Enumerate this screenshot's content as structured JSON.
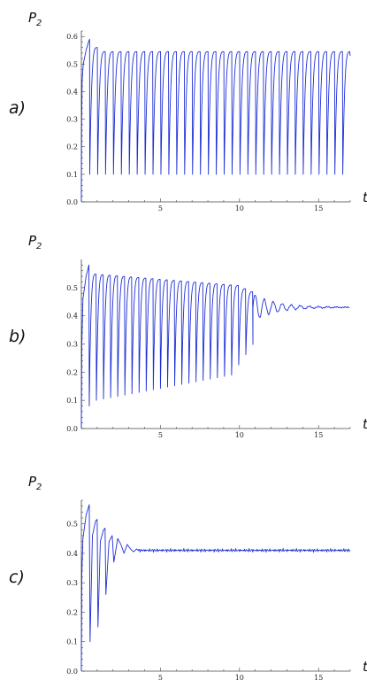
{
  "colors": {
    "series": "#1f2fd6",
    "axis": "#444444"
  },
  "chart_data": [
    {
      "type": "line",
      "panel_label": "a)",
      "ylabel": "P",
      "ylabel_sub": "2",
      "xlabel": "t",
      "xlim": [
        0,
        17
      ],
      "ylim": [
        0,
        0.62
      ],
      "x_ticks": [
        5,
        10,
        15
      ],
      "y_ticks": [
        "0.0",
        "0.1",
        "0.2",
        "0.3",
        "0.4",
        "0.5",
        "0.6"
      ],
      "grid": false,
      "description_of_signal": "sustained sawtooth oscillation",
      "series": [
        {
          "x": [
            0,
            0.03,
            0.25,
            0.35,
            0.45,
            0.5,
            0.55,
            0.7,
            0.85,
            1.0,
            1.1
          ],
          "y": [
            0.0,
            0.42,
            0.54,
            0.56,
            0.58,
            0.59,
            0.1,
            0.54,
            0.56,
            0.55,
            0.1
          ]
        }
      ]
    },
    {
      "type": "line",
      "panel_label": "b)",
      "ylabel": "P",
      "ylabel_sub": "2",
      "xlabel": "t",
      "xlim": [
        0,
        17
      ],
      "ylim": [
        0,
        0.6
      ],
      "x_ticks": [
        5,
        10,
        15
      ],
      "y_ticks": [
        "0.0",
        "0.1",
        "0.2",
        "0.3",
        "0.4",
        "0.5"
      ],
      "grid": false,
      "series": [
        {
          "x": [
            0,
            0.5,
            1.0,
            5.0,
            10.0,
            10.5,
            11.0,
            12.0,
            13.0,
            17.0
          ],
          "y": [
            0.0,
            0.58,
            0.09,
            0.13,
            0.2,
            0.29,
            0.39,
            0.43,
            0.43,
            0.43
          ]
        }
      ]
    },
    {
      "type": "line",
      "panel_label": "c)",
      "ylabel": "P",
      "ylabel_sub": "2",
      "xlabel": "t",
      "xlim": [
        0,
        17
      ],
      "ylim": [
        0,
        0.58
      ],
      "x_ticks": [
        5,
        10,
        15
      ],
      "y_ticks": [
        "0.0",
        "0.1",
        "0.2",
        "0.3",
        "0.4",
        "0.5"
      ],
      "grid": false,
      "series": [
        {
          "x": [
            0,
            0.5,
            0.8,
            1.2,
            1.6,
            2.0,
            2.4,
            3.0,
            4.0,
            17.0
          ],
          "y": [
            0.0,
            0.56,
            0.1,
            0.51,
            0.16,
            0.48,
            0.26,
            0.43,
            0.41,
            0.41
          ]
        }
      ]
    }
  ]
}
